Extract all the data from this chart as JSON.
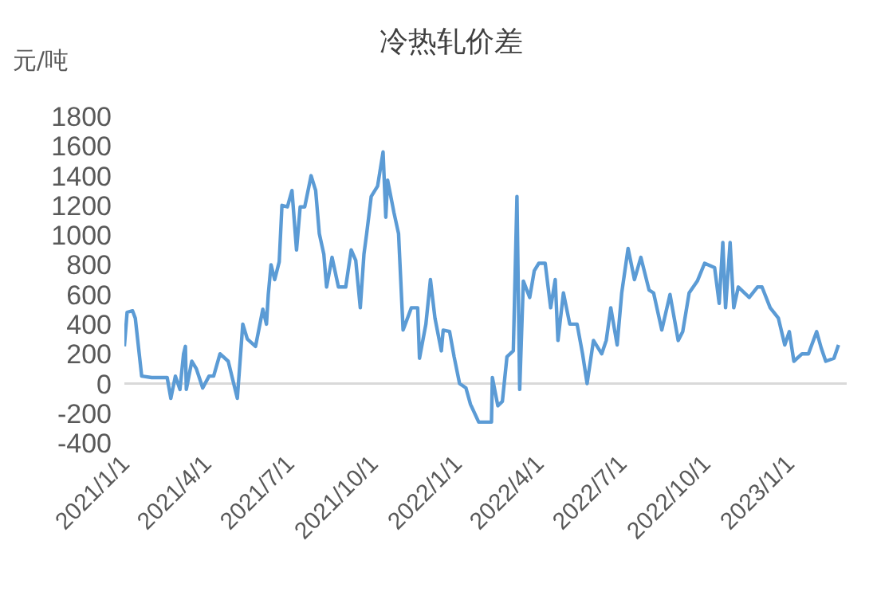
{
  "chart_data": {
    "type": "line",
    "title": "冷热轧价差",
    "ylabel": "元/吨",
    "x": [
      "2021-01-01",
      "2021-01-04",
      "2021-01-10",
      "2021-01-13",
      "2021-01-20",
      "2021-01-31",
      "2021-02-17",
      "2021-02-21",
      "2021-02-26",
      "2021-03-03",
      "2021-03-07",
      "2021-03-09",
      "2021-03-10",
      "2021-03-16",
      "2021-03-21",
      "2021-03-28",
      "2021-04-04",
      "2021-04-09",
      "2021-04-16",
      "2021-04-25",
      "2021-05-05",
      "2021-05-11",
      "2021-05-16",
      "2021-05-25",
      "2021-06-02",
      "2021-06-06",
      "2021-06-08",
      "2021-06-11",
      "2021-06-15",
      "2021-06-20",
      "2021-06-23",
      "2021-06-29",
      "2021-07-04",
      "2021-07-09",
      "2021-07-13",
      "2021-07-18",
      "2021-07-25",
      "2021-07-30",
      "2021-08-03",
      "2021-08-08",
      "2021-08-11",
      "2021-08-17",
      "2021-08-24",
      "2021-09-01",
      "2021-09-07",
      "2021-09-12",
      "2021-09-17",
      "2021-09-21",
      "2021-09-24",
      "2021-09-29",
      "2021-10-06",
      "2021-10-12",
      "2021-10-15",
      "2021-10-17",
      "2021-10-24",
      "2021-10-29",
      "2021-11-03",
      "2021-11-12",
      "2021-11-19",
      "2021-11-21",
      "2021-11-28",
      "2021-12-03",
      "2021-12-08",
      "2021-12-15",
      "2021-12-17",
      "2021-12-24",
      "2021-12-29",
      "2022-01-04",
      "2022-01-11",
      "2022-01-16",
      "2022-01-25",
      "2022-02-08",
      "2022-02-09",
      "2022-02-15",
      "2022-02-20",
      "2022-02-25",
      "2022-03-04",
      "2022-03-08",
      "2022-03-11",
      "2022-03-15",
      "2022-03-22",
      "2022-03-27",
      "2022-04-01",
      "2022-04-08",
      "2022-04-14",
      "2022-04-19",
      "2022-04-22",
      "2022-04-28",
      "2022-05-05",
      "2022-05-13",
      "2022-05-19",
      "2022-05-24",
      "2022-05-31",
      "2022-06-09",
      "2022-06-14",
      "2022-06-19",
      "2022-06-26",
      "2022-07-01",
      "2022-07-08",
      "2022-07-15",
      "2022-07-22",
      "2022-07-31",
      "2022-08-05",
      "2022-08-14",
      "2022-08-23",
      "2022-09-01",
      "2022-09-06",
      "2022-09-13",
      "2022-09-22",
      "2022-09-30",
      "2022-10-11",
      "2022-10-16",
      "2022-10-20",
      "2022-10-23",
      "2022-10-28",
      "2022-11-01",
      "2022-11-06",
      "2022-11-18",
      "2022-11-27",
      "2022-12-02",
      "2022-12-11",
      "2022-12-20",
      "2022-12-27",
      "2023-01-01",
      "2023-01-06",
      "2023-01-15",
      "2023-01-22",
      "2023-01-31",
      "2023-02-05",
      "2023-02-10",
      "2023-02-19",
      "2023-02-24"
    ],
    "series": [
      {
        "color": "#5b9bd5",
        "values": [
          250,
          480,
          490,
          440,
          50,
          40,
          40,
          -100,
          50,
          -40,
          200,
          250,
          -40,
          150,
          100,
          -30,
          50,
          50,
          200,
          150,
          -100,
          400,
          300,
          250,
          500,
          400,
          600,
          800,
          700,
          820,
          1200,
          1190,
          1300,
          900,
          1190,
          1190,
          1400,
          1300,
          1010,
          870,
          650,
          850,
          650,
          650,
          900,
          830,
          510,
          870,
          1010,
          1260,
          1330,
          1560,
          1120,
          1370,
          1150,
          1010,
          360,
          510,
          510,
          170,
          400,
          700,
          440,
          220,
          360,
          350,
          180,
          0,
          -30,
          -140,
          -260,
          -260,
          40,
          -150,
          -120,
          180,
          220,
          1260,
          -40,
          690,
          580,
          760,
          810,
          810,
          510,
          700,
          290,
          610,
          400,
          400,
          200,
          0,
          290,
          200,
          290,
          510,
          260,
          610,
          910,
          700,
          850,
          630,
          610,
          360,
          600,
          290,
          350,
          610,
          690,
          810,
          780,
          540,
          950,
          510,
          950,
          510,
          650,
          580,
          650,
          650,
          510,
          440,
          260,
          350,
          150,
          200,
          200,
          350,
          240,
          150,
          170,
          260
        ]
      }
    ],
    "xlim": [
      "2021-01-01",
      "2023-03-05"
    ],
    "xticks": [
      {
        "value": "2021-01-01",
        "label": "2021/1/1"
      },
      {
        "value": "2021-04-01",
        "label": "2021/4/1"
      },
      {
        "value": "2021-07-01",
        "label": "2021/7/1"
      },
      {
        "value": "2021-10-01",
        "label": "2021/10/1"
      },
      {
        "value": "2022-01-01",
        "label": "2022/1/1"
      },
      {
        "value": "2022-04-01",
        "label": "2022/4/1"
      },
      {
        "value": "2022-07-01",
        "label": "2022/7/1"
      },
      {
        "value": "2022-10-01",
        "label": "2022/10/1"
      },
      {
        "value": "2023-01-01",
        "label": "2023/1/1"
      }
    ],
    "ylim": [
      -400,
      1800
    ],
    "yticks": [
      -400,
      -200,
      0,
      200,
      400,
      600,
      800,
      1000,
      1200,
      1400,
      1600,
      1800
    ],
    "ref_lines": [
      {
        "axis": "y",
        "value": 0,
        "color": "#d9d9d9"
      }
    ],
    "grid": false,
    "legend": false,
    "marker": "none",
    "line_style": "solid"
  }
}
